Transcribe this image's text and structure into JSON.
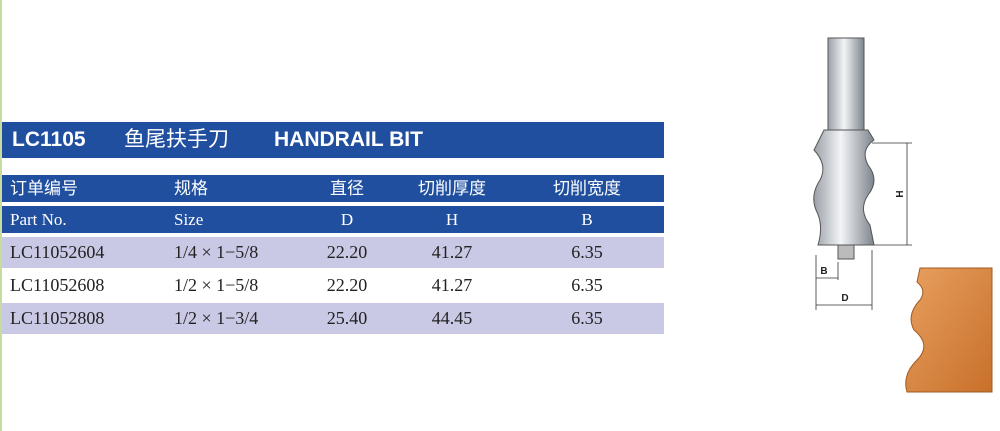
{
  "title": {
    "code": "LC1105",
    "name_cn": "鱼尾扶手刀",
    "name_en": "HANDRAIL BIT"
  },
  "table": {
    "header_cn": [
      "订单编号",
      "规格",
      "直径",
      "切削厚度",
      "切削宽度"
    ],
    "header_en": [
      "Part No.",
      "Size",
      "D",
      "H",
      "B"
    ],
    "rows": [
      [
        "LC11052604",
        "1/4 × 1−5/8",
        "22.20",
        "41.27",
        "6.35"
      ],
      [
        "LC11052608",
        "1/2 × 1−5/8",
        "22.20",
        "41.27",
        "6.35"
      ],
      [
        "LC11052808",
        "1/2 × 1−3/4",
        "25.40",
        "44.45",
        "6.35"
      ]
    ]
  },
  "diagram": {
    "labels": [
      "H",
      "B",
      "D"
    ]
  }
}
